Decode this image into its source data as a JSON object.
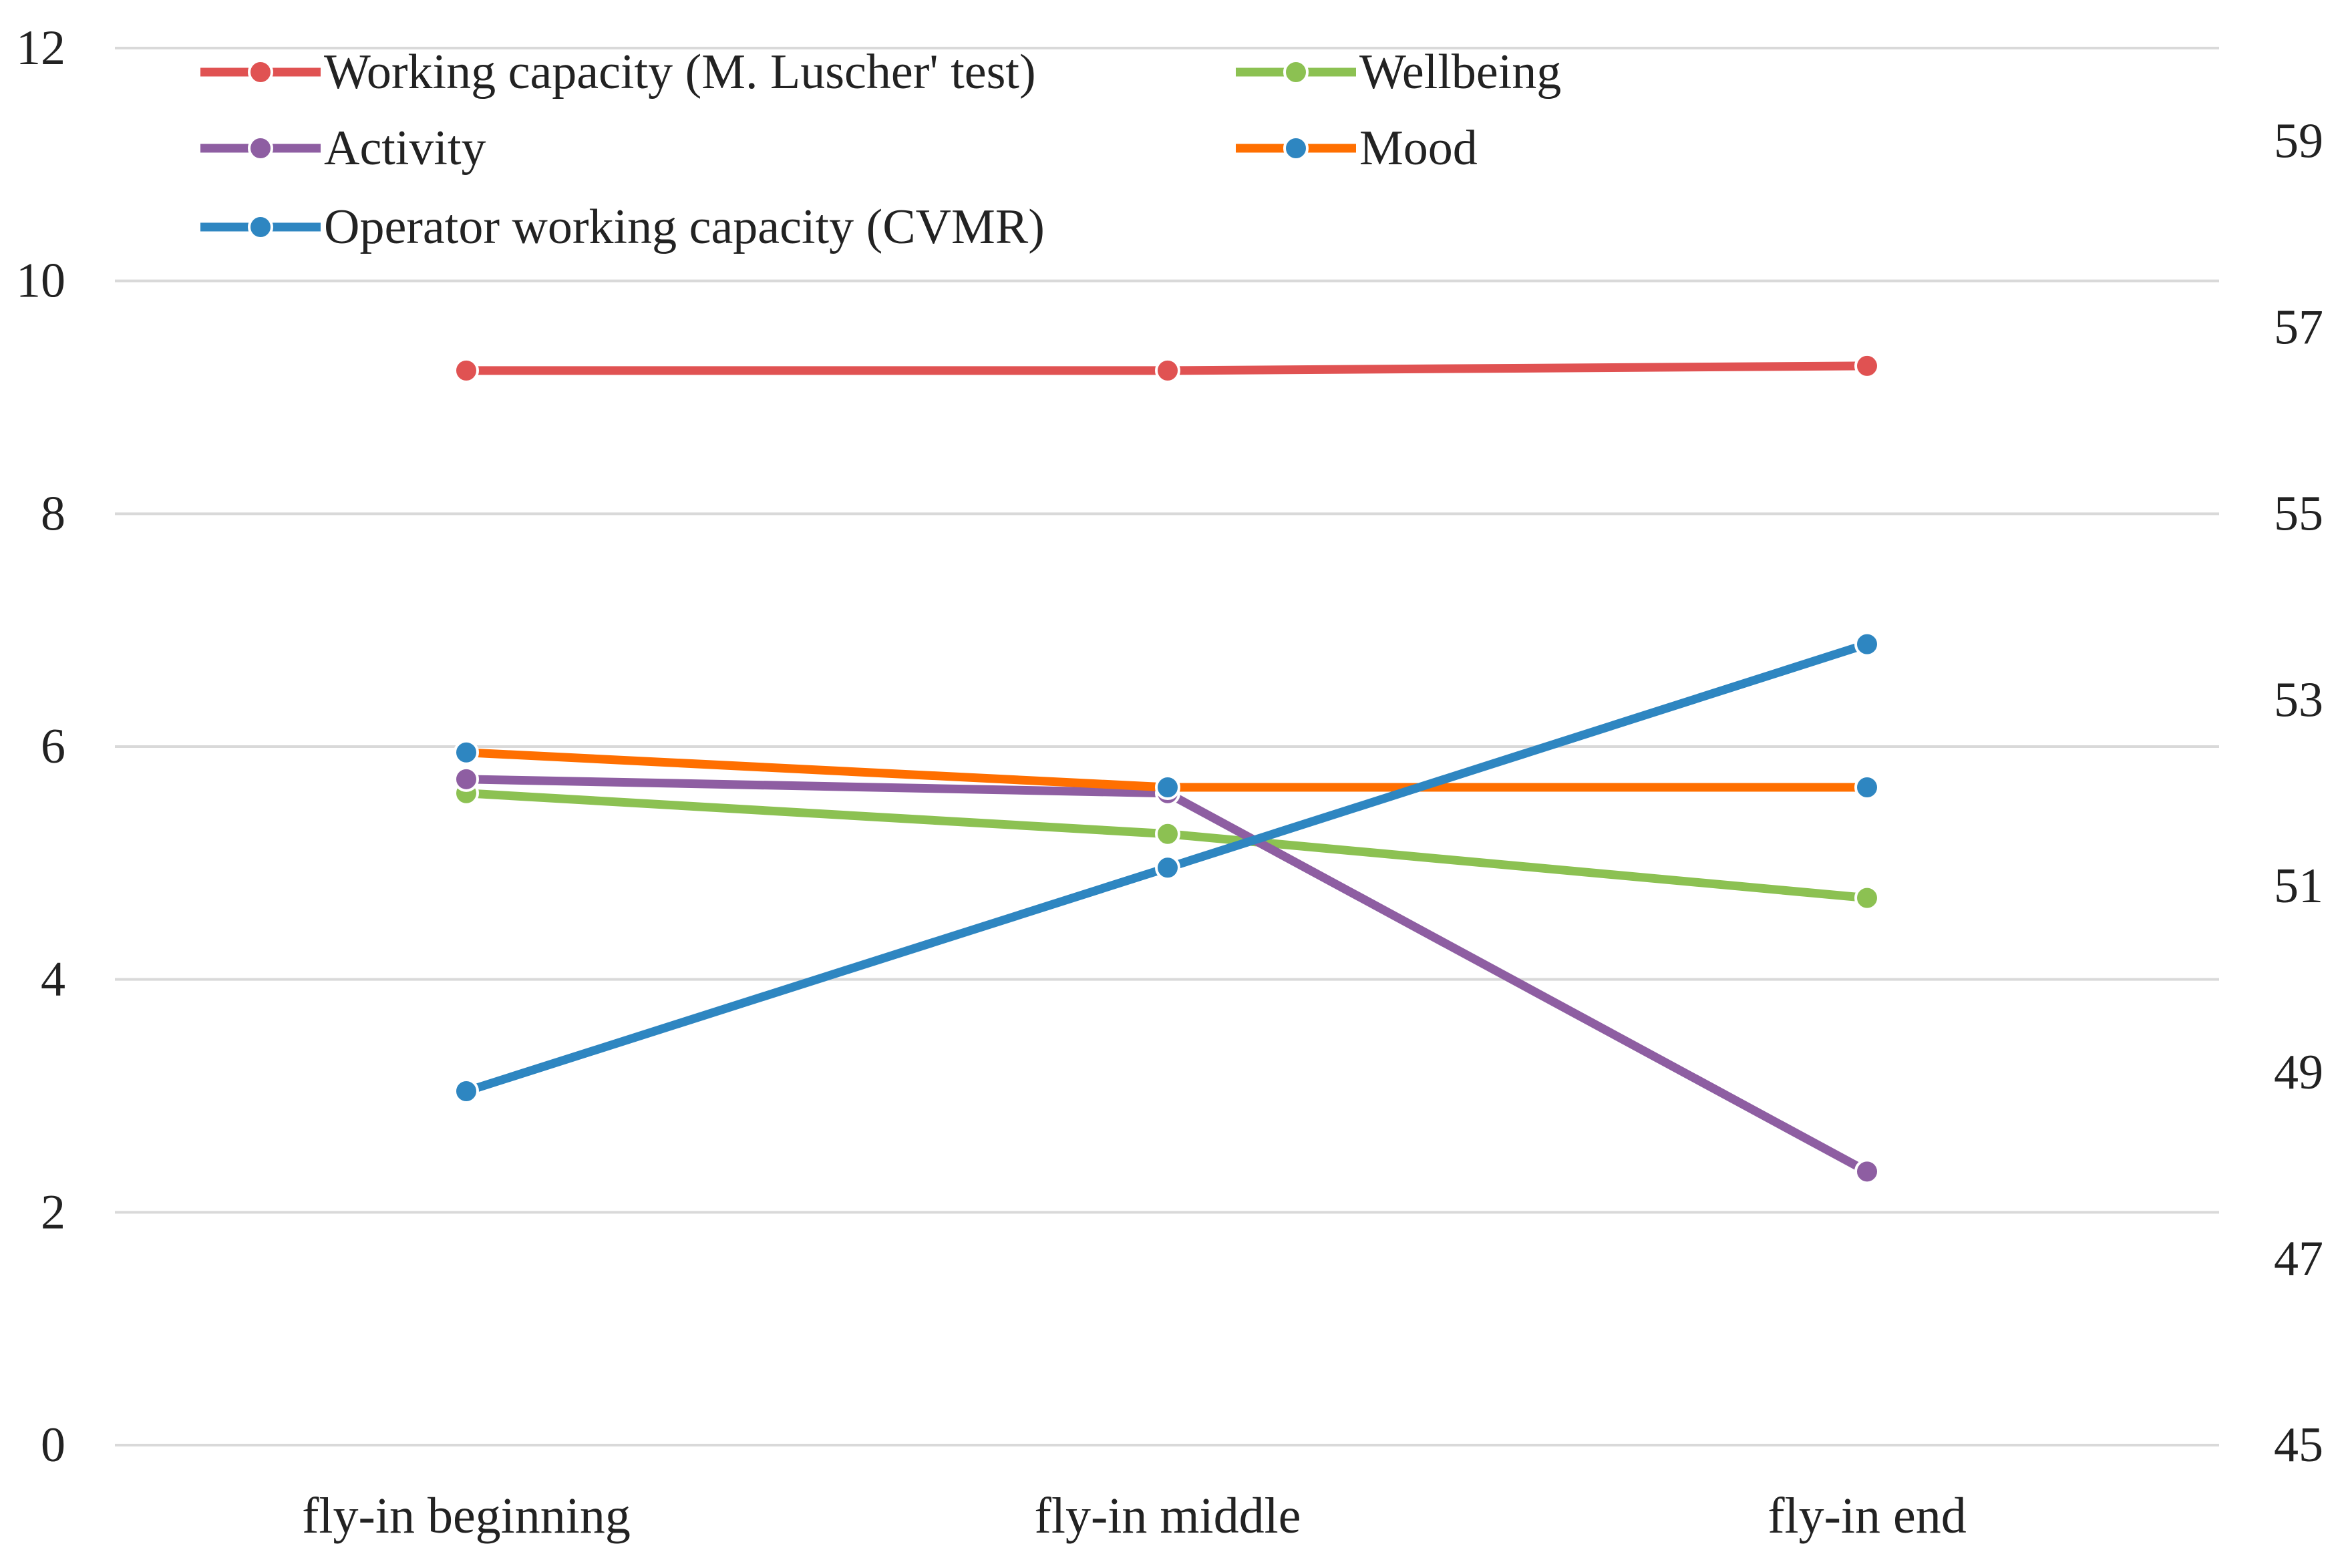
{
  "chart_data": {
    "type": "line",
    "categories": [
      "fly-in beginning",
      "fly-in middle",
      "fly-in end"
    ],
    "y_left": {
      "ylim": [
        0,
        12
      ],
      "ticks": [
        "0",
        "2",
        "4",
        "6",
        "8",
        "10",
        "12"
      ]
    },
    "y_right": {
      "ylim": [
        45,
        60
      ],
      "ticks": [
        "45",
        "47",
        "49",
        "51",
        "53",
        "55",
        "57",
        "59"
      ]
    },
    "grid": true,
    "legend_position": "top",
    "series": [
      {
        "name": "Working capacity (M. Luscher' test)",
        "axis": "left",
        "color": "#E05252",
        "values": [
          9.23,
          9.23,
          9.27
        ]
      },
      {
        "name": "Wellbeing",
        "axis": "left",
        "color": "#8CC152",
        "values": [
          5.6,
          5.25,
          4.7
        ]
      },
      {
        "name": "Activity",
        "axis": "left",
        "color": "#8E5EA2",
        "values": [
          5.72,
          5.6,
          2.35
        ]
      },
      {
        "name": "Mood",
        "axis": "left",
        "color": "#FF6F00",
        "marker_color": "#2E86C1",
        "values": [
          5.95,
          5.65,
          5.65
        ]
      },
      {
        "name": "Operator working capacity (CVMR)",
        "axis": "right",
        "color": "#2E86C1",
        "values": [
          48.8,
          51.2,
          53.6
        ]
      }
    ]
  }
}
